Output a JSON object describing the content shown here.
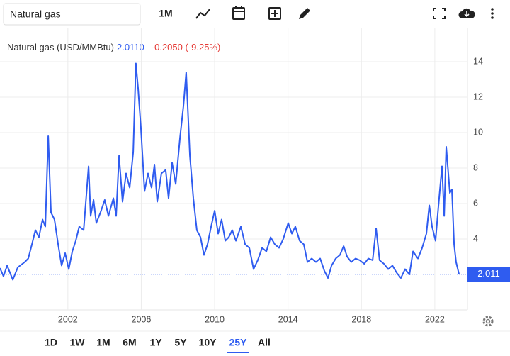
{
  "toolbar": {
    "search": "Natural gas",
    "interval": "1M"
  },
  "chart_data": {
    "type": "line",
    "title": "Natural gas (USD/MMBtu)",
    "header_price": "2.0110",
    "header_change": "-0.2050 (-9.25%)",
    "color": "#2f5cf0",
    "grid": true,
    "x": [
      1998.3,
      1998.49,
      1998.69,
      1999.0,
      1999.27,
      1999.65,
      1999.84,
      2000.04,
      2000.23,
      2000.42,
      2000.62,
      2000.77,
      2000.93,
      2001.08,
      2001.27,
      2001.47,
      2001.66,
      2001.85,
      2002.05,
      2002.24,
      2002.43,
      2002.62,
      2002.86,
      2003.13,
      2003.24,
      2003.4,
      2003.55,
      2003.78,
      2004.01,
      2004.21,
      2004.48,
      2004.63,
      2004.79,
      2004.98,
      2005.17,
      2005.37,
      2005.56,
      2005.71,
      2005.83,
      2005.98,
      2006.18,
      2006.37,
      2006.56,
      2006.72,
      2006.87,
      2007.1,
      2007.33,
      2007.49,
      2007.68,
      2007.88,
      2008.11,
      2008.3,
      2008.45,
      2008.65,
      2008.84,
      2009.03,
      2009.23,
      2009.42,
      2009.61,
      2009.81,
      2010.0,
      2010.19,
      2010.38,
      2010.58,
      2010.77,
      2010.96,
      2011.16,
      2011.43,
      2011.66,
      2011.89,
      2012.12,
      2012.35,
      2012.59,
      2012.82,
      2013.05,
      2013.28,
      2013.51,
      2013.74,
      2014.01,
      2014.21,
      2014.4,
      2014.63,
      2014.86,
      2015.06,
      2015.29,
      2015.52,
      2015.75,
      2015.98,
      2016.18,
      2016.37,
      2016.6,
      2016.83,
      2017.03,
      2017.22,
      2017.45,
      2017.68,
      2017.91,
      2018.15,
      2018.38,
      2018.61,
      2018.8,
      2018.99,
      2019.23,
      2019.46,
      2019.69,
      2019.92,
      2020.15,
      2020.38,
      2020.62,
      2020.81,
      2021.08,
      2021.31,
      2021.54,
      2021.7,
      2021.85,
      2022.04,
      2022.2,
      2022.39,
      2022.51,
      2022.62,
      2022.82,
      2022.93,
      2023.05,
      2023.16,
      2023.32
    ],
    "values": [
      2.36,
      1.9,
      2.5,
      1.7,
      2.4,
      2.7,
      2.9,
      3.7,
      4.5,
      4.1,
      5.1,
      4.7,
      9.8,
      5.5,
      5.1,
      3.7,
      2.5,
      3.2,
      2.3,
      3.3,
      3.9,
      4.7,
      4.5,
      8.1,
      5.3,
      6.2,
      4.9,
      5.5,
      6.2,
      5.3,
      6.3,
      5.3,
      8.7,
      6.1,
      7.7,
      6.9,
      8.9,
      13.9,
      12.5,
      10.3,
      6.7,
      7.7,
      6.9,
      8.2,
      6.1,
      7.7,
      7.9,
      6.3,
      8.3,
      7.1,
      9.7,
      11.5,
      13.4,
      8.7,
      6.3,
      4.5,
      4.1,
      3.1,
      3.7,
      4.7,
      5.6,
      4.3,
      5.1,
      3.9,
      4.1,
      4.5,
      3.9,
      4.7,
      3.7,
      3.5,
      2.3,
      2.8,
      3.5,
      3.3,
      4.1,
      3.7,
      3.5,
      4.0,
      4.9,
      4.3,
      4.7,
      3.9,
      3.7,
      2.7,
      2.9,
      2.7,
      2.9,
      2.2,
      1.8,
      2.5,
      2.9,
      3.1,
      3.6,
      3.0,
      2.7,
      2.9,
      2.8,
      2.6,
      2.9,
      2.8,
      4.6,
      2.8,
      2.6,
      2.3,
      2.5,
      2.1,
      1.8,
      2.3,
      2.0,
      3.3,
      2.9,
      3.5,
      4.3,
      5.9,
      4.7,
      3.9,
      5.9,
      8.1,
      5.3,
      9.2,
      6.6,
      6.8,
      3.7,
      2.7,
      2.011
    ],
    "last_price": 2.011,
    "xlim": [
      1998.3,
      2023.78
    ],
    "ylim": [
      0,
      15.88
    ],
    "xticks": [
      2002,
      2006,
      2010,
      2014,
      2018,
      2022
    ],
    "yticks": [
      4,
      6,
      8,
      10,
      12,
      14
    ]
  },
  "ranges": [
    "1D",
    "1W",
    "1M",
    "6M",
    "1Y",
    "5Y",
    "10Y",
    "25Y",
    "All"
  ],
  "active_range": 7
}
